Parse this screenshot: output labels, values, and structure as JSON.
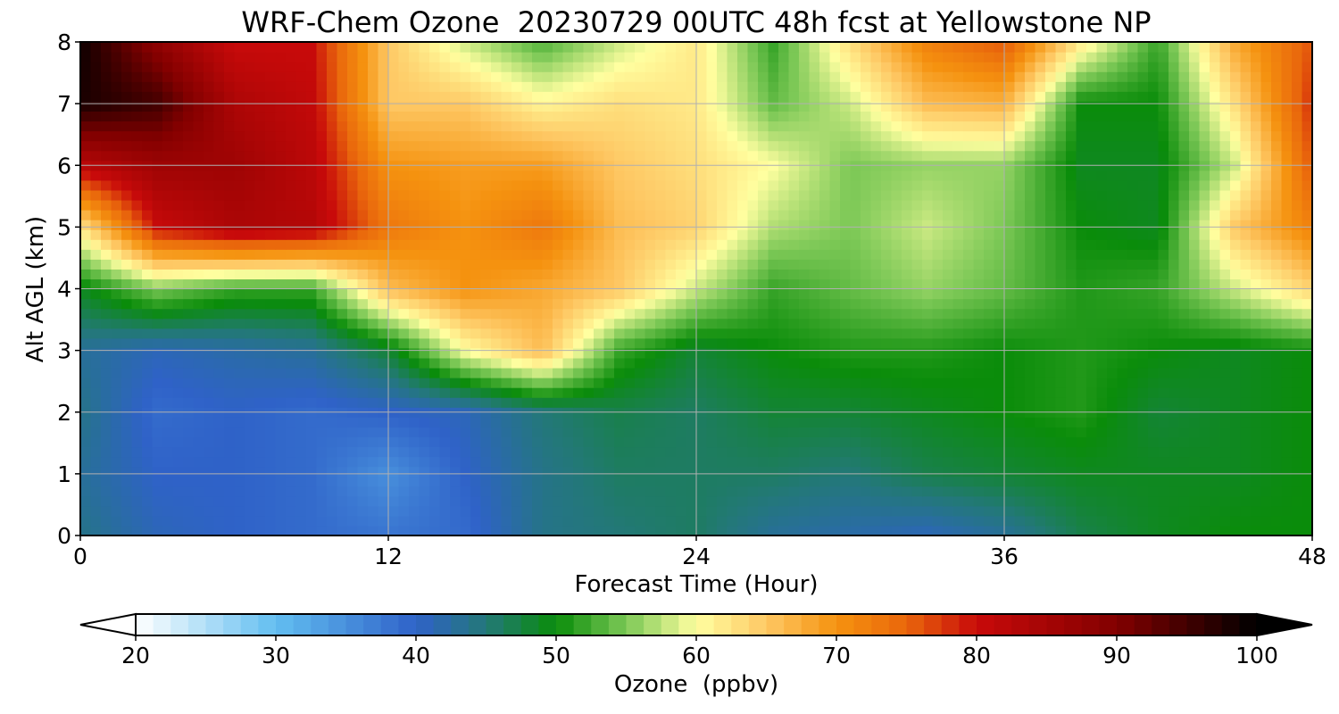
{
  "chart_data": {
    "type": "heatmap",
    "title": "WRF-Chem Ozone  20230729 00UTC 48h fcst at Yellowstone NP",
    "xlabel": "Forecast Time (Hour)",
    "ylabel": "Alt AGL (km)",
    "colorbar_label": "Ozone  (ppbv)",
    "xlim": [
      0,
      48
    ],
    "ylim": [
      0,
      8
    ],
    "xticks": [
      0,
      12,
      24,
      36,
      48
    ],
    "yticks": [
      0,
      1,
      2,
      3,
      4,
      5,
      6,
      7,
      8
    ],
    "colorbar_ticks": [
      20,
      30,
      40,
      50,
      60,
      70,
      80,
      90,
      100
    ],
    "colorbar_range": [
      20,
      100
    ],
    "colorbar_extend": "both",
    "grid": true,
    "x": [
      0,
      3,
      6,
      9,
      12,
      15,
      18,
      21,
      24,
      27,
      30,
      33,
      36,
      39,
      42,
      45,
      48
    ],
    "y": [
      0,
      1,
      2,
      3,
      4,
      5,
      6,
      7,
      8
    ],
    "z": [
      [
        44,
        41,
        40,
        39,
        38,
        39,
        44,
        45,
        46,
        43,
        42,
        41,
        43,
        47,
        49,
        50,
        50
      ],
      [
        43,
        40,
        40,
        39,
        35,
        40,
        44,
        46,
        46,
        46,
        45,
        47,
        48,
        49,
        49,
        49,
        50
      ],
      [
        44,
        39,
        40,
        39,
        40,
        41,
        45,
        47,
        46,
        48,
        48,
        49,
        50,
        51,
        48,
        49,
        50
      ],
      [
        43,
        41,
        42,
        43,
        48,
        60,
        66,
        52,
        48,
        50,
        51,
        51,
        50,
        51,
        50,
        49,
        50
      ],
      [
        49,
        55,
        52,
        52,
        66,
        70,
        68,
        65,
        58,
        52,
        54,
        56,
        54,
        51,
        52,
        58,
        64
      ],
      [
        62,
        80,
        84,
        83,
        73,
        70,
        73,
        66,
        64,
        57,
        55,
        58,
        55,
        50,
        49,
        65,
        72
      ],
      [
        82,
        86,
        86,
        82,
        70,
        69,
        69,
        65,
        63,
        60,
        55,
        56,
        56,
        49,
        49,
        58,
        76
      ],
      [
        98,
        95,
        84,
        81,
        65,
        65,
        61,
        63,
        62,
        54,
        58,
        66,
        67,
        50,
        50,
        63,
        78
      ],
      [
        99,
        88,
        80,
        80,
        65,
        58,
        53,
        58,
        62,
        52,
        63,
        72,
        76,
        62,
        52,
        68,
        76
      ]
    ],
    "colors": {
      "20": "#ffffff",
      "30": "#62bef0",
      "40": "#2f62c8",
      "45": "#237878",
      "50": "#0a8c0a",
      "55": "#7cc856",
      "60": "#ffffa0",
      "65": "#fec864",
      "70": "#f5920f",
      "75": "#e9660c",
      "80": "#c80a0a",
      "90": "#820000",
      "100": "#000000"
    }
  }
}
